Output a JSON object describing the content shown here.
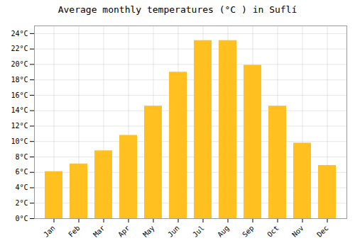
{
  "chart_data": {
    "type": "bar",
    "title": "Average monthly temperatures (°C ) in Suflí",
    "categories": [
      "Jan",
      "Feb",
      "Mar",
      "Apr",
      "May",
      "Jun",
      "Jul",
      "Aug",
      "Sep",
      "Oct",
      "Nov",
      "Dec"
    ],
    "values": [
      6.1,
      7.1,
      8.8,
      10.8,
      14.6,
      19.0,
      23.1,
      23.1,
      19.9,
      14.6,
      9.8,
      6.9
    ],
    "color": "#FFC020",
    "ylim": [
      0,
      25
    ],
    "yticks": [
      {
        "value": 0,
        "label": "0°C"
      },
      {
        "value": 2,
        "label": "2°C"
      },
      {
        "value": 4,
        "label": "4°C"
      },
      {
        "value": 6,
        "label": "6°C"
      },
      {
        "value": 8,
        "label": "8°C"
      },
      {
        "value": 10,
        "label": "10°C"
      },
      {
        "value": 12,
        "label": "12°C"
      },
      {
        "value": 14,
        "label": "14°C"
      },
      {
        "value": 16,
        "label": "16°C"
      },
      {
        "value": 18,
        "label": "18°C"
      },
      {
        "value": 20,
        "label": "20°C"
      },
      {
        "value": 22,
        "label": "22°C"
      },
      {
        "value": 24,
        "label": "24°C"
      }
    ],
    "grid": true
  }
}
